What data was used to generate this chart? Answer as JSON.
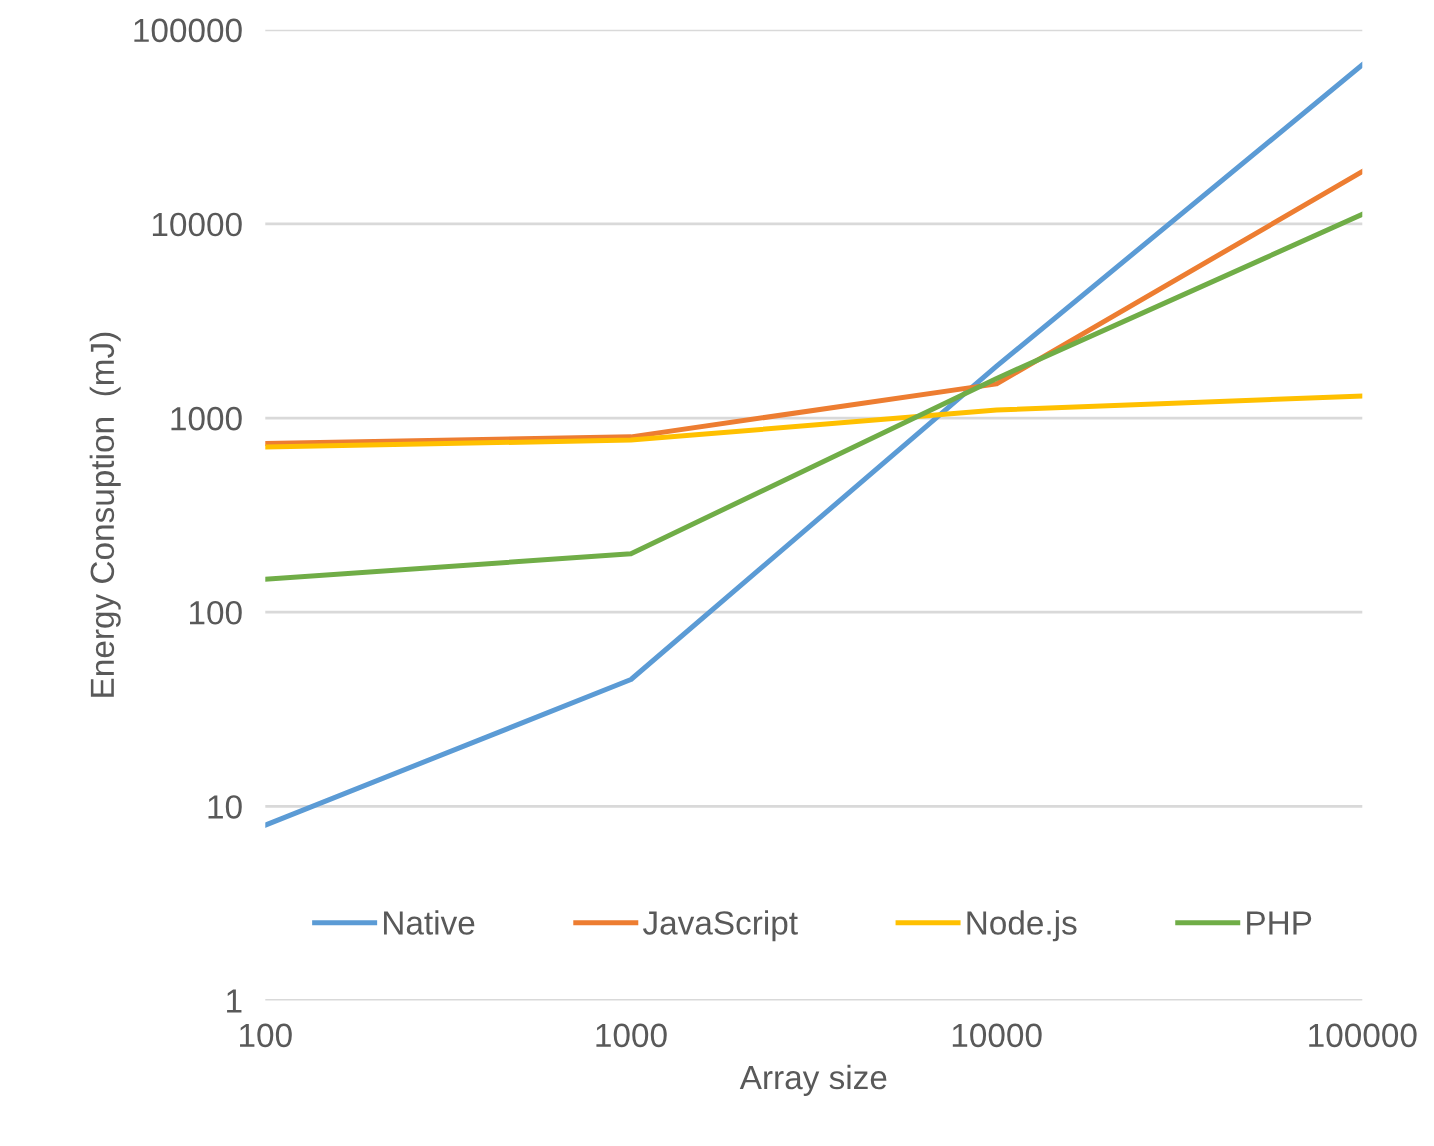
{
  "chart_data": {
    "type": "line",
    "xlabel": "Array size",
    "ylabel": "Energy Consuption  (mJ)",
    "x": [
      100,
      1000,
      10000,
      100000
    ],
    "series": [
      {
        "name": "Native",
        "color": "#5b9bd5",
        "values": [
          8,
          45,
          1850,
          66000
        ]
      },
      {
        "name": "JavaScript",
        "color": "#ed7d31",
        "values": [
          740,
          800,
          1500,
          18600
        ]
      },
      {
        "name": "Node.js",
        "color": "#ffc000",
        "values": [
          710,
          770,
          1100,
          1300
        ]
      },
      {
        "name": "PHP",
        "color": "#70ad47",
        "values": [
          148,
          200,
          1600,
          11200
        ]
      }
    ],
    "log": "xy",
    "xlim": [
      100,
      100000
    ],
    "ylim": [
      1,
      100000
    ],
    "xticks": [
      100,
      1000,
      10000,
      100000
    ],
    "yticks": [
      1,
      10,
      100,
      1000,
      10000,
      100000
    ],
    "grid": "y",
    "legend": "bottom",
    "marker": "none",
    "line_style": "solid"
  }
}
